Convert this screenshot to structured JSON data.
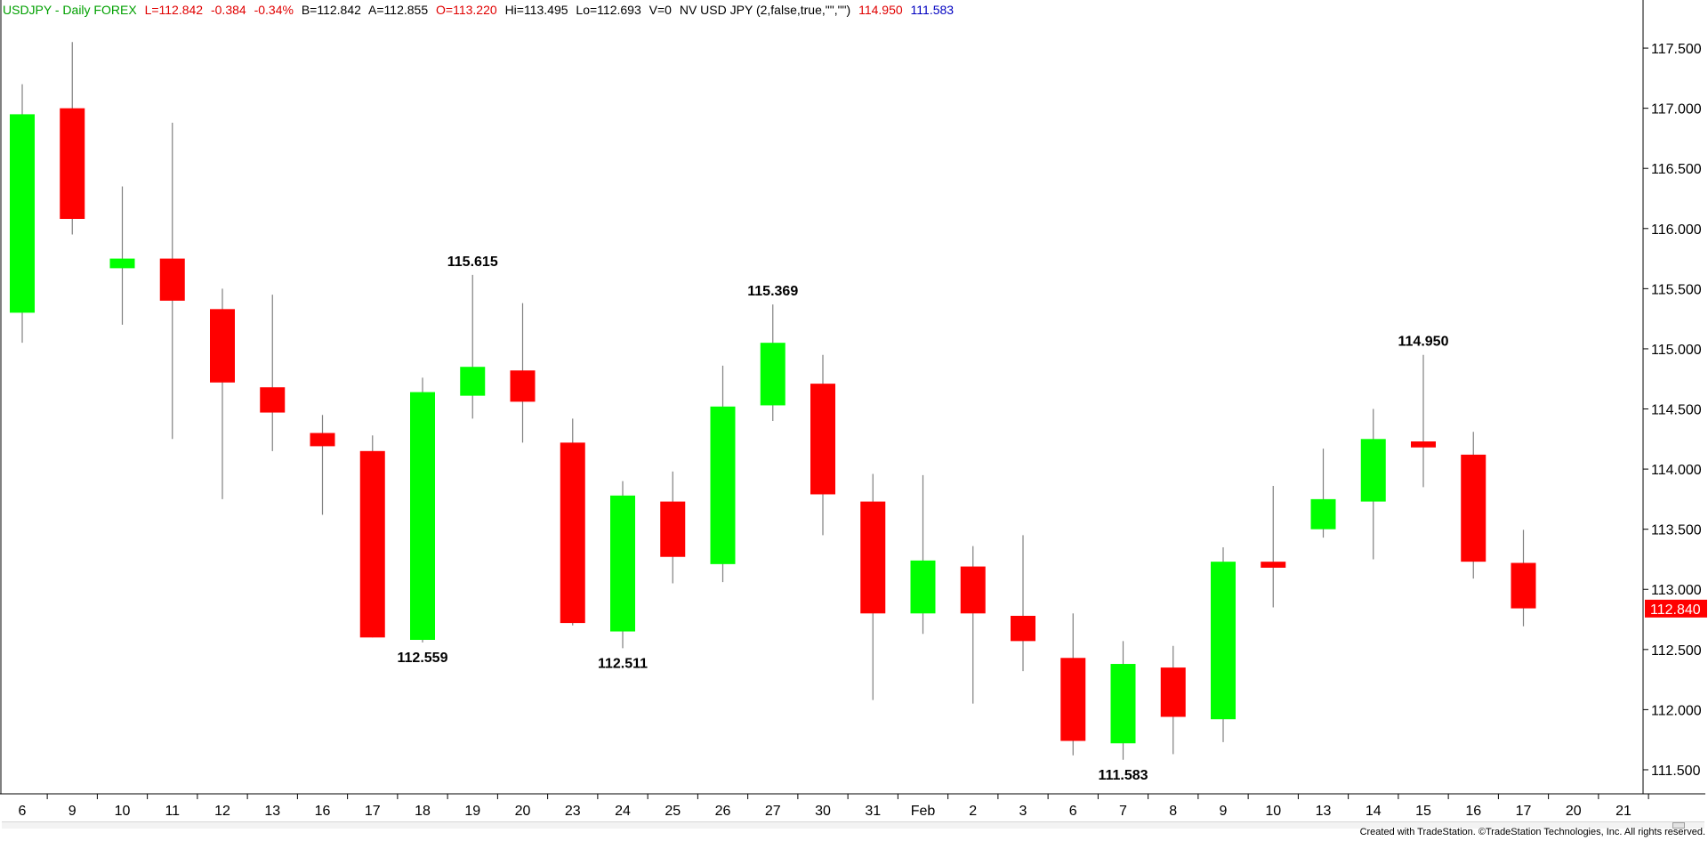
{
  "header": {
    "symbol": "USDJPY - Daily  FOREX",
    "last": "L=112.842",
    "change": "-0.384",
    "change_pct": "-0.34%",
    "bid": "B=112.842",
    "ask": "A=112.855",
    "open": "O=113.220",
    "high": "Hi=113.495",
    "low": "Lo=112.693",
    "volume": "V=0",
    "indicator": "NV USD JPY (2,false,true,\"\",\"\")",
    "indicator_high": "114.950",
    "indicator_low": "111.583"
  },
  "footer": {
    "credit": "Created with TradeStation. ©TradeStation Technologies, Inc. All rights reserved."
  },
  "colors": {
    "up": "#00ff00",
    "down": "#ff0000",
    "wick": "#808080",
    "grid": "#000000",
    "header_symbol": "#00a000",
    "header_values": "#e00000",
    "header_indicator_high": "#e00000",
    "header_indicator_low": "#0000c0",
    "last_price_bg": "#ff0000"
  },
  "chart_data": {
    "type": "candlestick",
    "ylim": [
      111.3,
      117.9
    ],
    "y_ticks": [
      "117.500",
      "117.000",
      "116.500",
      "116.000",
      "115.500",
      "115.000",
      "114.500",
      "114.000",
      "113.500",
      "113.000",
      "112.500",
      "112.000",
      "111.500"
    ],
    "last_price_label": "112.840",
    "last_price": 112.84,
    "x_ticks": [
      "6",
      "9",
      "10",
      "11",
      "12",
      "13",
      "16",
      "17",
      "18",
      "19",
      "20",
      "23",
      "24",
      "25",
      "26",
      "27",
      "30",
      "31",
      "Feb",
      "2",
      "3",
      "6",
      "7",
      "8",
      "9",
      "10",
      "13",
      "14",
      "15",
      "16",
      "17",
      "20",
      "21"
    ],
    "candles": [
      {
        "date": "6",
        "open": 115.3,
        "high": 117.2,
        "low": 115.05,
        "close": 116.95
      },
      {
        "date": "9",
        "open": 117.0,
        "high": 117.55,
        "low": 115.95,
        "close": 116.08
      },
      {
        "date": "10",
        "open": 115.67,
        "high": 116.35,
        "low": 115.2,
        "close": 115.75
      },
      {
        "date": "11",
        "open": 115.75,
        "high": 116.88,
        "low": 114.25,
        "close": 115.4
      },
      {
        "date": "12",
        "open": 115.33,
        "high": 115.5,
        "low": 113.75,
        "close": 114.72
      },
      {
        "date": "13",
        "open": 114.68,
        "high": 115.45,
        "low": 114.15,
        "close": 114.47
      },
      {
        "date": "16",
        "open": 114.3,
        "high": 114.45,
        "low": 113.62,
        "close": 114.19
      },
      {
        "date": "17",
        "open": 114.15,
        "high": 114.28,
        "low": 112.6,
        "close": 112.6
      },
      {
        "date": "18",
        "open": 112.58,
        "high": 114.76,
        "low": 112.559,
        "close": 114.64
      },
      {
        "date": "19",
        "open": 114.61,
        "high": 115.615,
        "low": 114.42,
        "close": 114.85
      },
      {
        "date": "20",
        "open": 114.82,
        "high": 115.38,
        "low": 114.22,
        "close": 114.56
      },
      {
        "date": "23",
        "open": 114.22,
        "high": 114.42,
        "low": 112.7,
        "close": 112.72
      },
      {
        "date": "24",
        "open": 112.65,
        "high": 113.9,
        "low": 112.511,
        "close": 113.78
      },
      {
        "date": "25",
        "open": 113.73,
        "high": 113.98,
        "low": 113.05,
        "close": 113.27
      },
      {
        "date": "26",
        "open": 113.21,
        "high": 114.86,
        "low": 113.06,
        "close": 114.52
      },
      {
        "date": "27",
        "open": 114.53,
        "high": 115.369,
        "low": 114.4,
        "close": 115.05
      },
      {
        "date": "30",
        "open": 114.71,
        "high": 114.95,
        "low": 113.45,
        "close": 113.79
      },
      {
        "date": "31",
        "open": 113.73,
        "high": 113.96,
        "low": 112.08,
        "close": 112.8
      },
      {
        "date": "Feb",
        "open": 112.8,
        "high": 113.95,
        "low": 112.63,
        "close": 113.24
      },
      {
        "date": "2",
        "open": 113.19,
        "high": 113.36,
        "low": 112.05,
        "close": 112.8
      },
      {
        "date": "3",
        "open": 112.78,
        "high": 113.45,
        "low": 112.32,
        "close": 112.57
      },
      {
        "date": "6",
        "open": 112.43,
        "high": 112.8,
        "low": 111.62,
        "close": 111.74
      },
      {
        "date": "7",
        "open": 111.72,
        "high": 112.57,
        "low": 111.583,
        "close": 112.38
      },
      {
        "date": "8",
        "open": 112.35,
        "high": 112.53,
        "low": 111.63,
        "close": 111.94
      },
      {
        "date": "9",
        "open": 111.92,
        "high": 113.35,
        "low": 111.73,
        "close": 113.23
      },
      {
        "date": "10",
        "open": 113.23,
        "high": 113.86,
        "low": 112.85,
        "close": 113.18
      },
      {
        "date": "13",
        "open": 113.5,
        "high": 114.17,
        "low": 113.43,
        "close": 113.75
      },
      {
        "date": "14",
        "open": 113.73,
        "high": 114.5,
        "low": 113.25,
        "close": 114.25
      },
      {
        "date": "15",
        "open": 114.23,
        "high": 114.95,
        "low": 113.85,
        "close": 114.18
      },
      {
        "date": "16",
        "open": 114.12,
        "high": 114.31,
        "low": 113.09,
        "close": 113.23
      },
      {
        "date": "17",
        "open": 113.22,
        "high": 113.495,
        "low": 112.693,
        "close": 112.842
      }
    ],
    "annotations": [
      {
        "text": "115.615",
        "candle": 9,
        "anchor": "high"
      },
      {
        "text": "112.559",
        "candle": 8,
        "anchor": "low"
      },
      {
        "text": "112.511",
        "candle": 12,
        "anchor": "low"
      },
      {
        "text": "115.369",
        "candle": 15,
        "anchor": "high"
      },
      {
        "text": "111.583",
        "candle": 22,
        "anchor": "low"
      },
      {
        "text": "114.950",
        "candle": 28,
        "anchor": "high"
      }
    ]
  }
}
